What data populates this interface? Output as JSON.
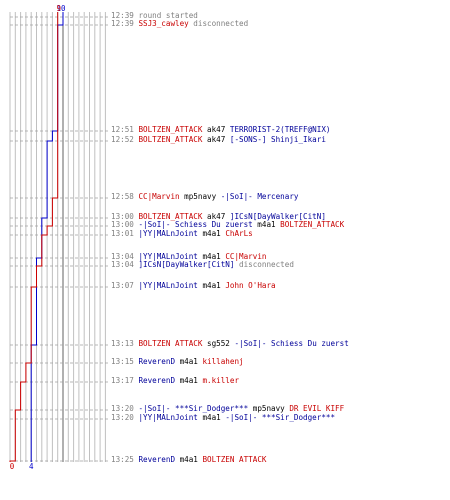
{
  "colors": {
    "blue_team": "#0000cc",
    "red_team": "#cc0000",
    "grid": "#c0c0c0",
    "axis": "#606060",
    "dashed": "#a0a0a0",
    "timestamp": "#808080",
    "blue_name": "#000099",
    "red_name": "#c80000"
  },
  "score": {
    "blue_start": "10",
    "red_start": "9",
    "blue_end": "4",
    "red_end": "0"
  },
  "progress": {
    "blue_counts": [
      10,
      9,
      8,
      7,
      7,
      6,
      6,
      6,
      5,
      5,
      5,
      4,
      4,
      4,
      4,
      4,
      4
    ],
    "red_counts": [
      9,
      9,
      9,
      9,
      8,
      8,
      7,
      6,
      6,
      5,
      4,
      4,
      3,
      2,
      1,
      1,
      0
    ]
  },
  "log": [
    {
      "time": "12:39",
      "parts": [
        {
          "text": "round started",
          "c": "gray"
        }
      ]
    },
    {
      "time": "12:39",
      "parts": [
        {
          "text": "SSJ3_cawley",
          "c": "red"
        },
        {
          "text": " disconnected",
          "c": "gray"
        }
      ]
    },
    {
      "time": "12:51",
      "parts": [
        {
          "text": "BOLTZEN_ATTACK",
          "c": "red"
        },
        {
          "text": " ak47 ",
          "c": "black"
        },
        {
          "text": "TERRORIST-2(TREFF@NIX)",
          "c": "blue"
        }
      ]
    },
    {
      "time": "12:52",
      "parts": [
        {
          "text": "BOLTZEN_ATTACK",
          "c": "red"
        },
        {
          "text": " ak47 ",
          "c": "black"
        },
        {
          "text": "[-SONS-] Shinji_Ikari",
          "c": "blue"
        }
      ]
    },
    {
      "time": "12:58",
      "parts": [
        {
          "text": "CC|Marvin",
          "c": "red"
        },
        {
          "text": " mp5navy ",
          "c": "black"
        },
        {
          "text": "-|SoI|- Mercenary",
          "c": "blue"
        }
      ]
    },
    {
      "time": "13:00",
      "parts": [
        {
          "text": "BOLTZEN_ATTACK",
          "c": "red"
        },
        {
          "text": " ak47 ",
          "c": "black"
        },
        {
          "text": "]ICsN[DayWalker[CitN]",
          "c": "blue"
        }
      ]
    },
    {
      "time": "13:00",
      "parts": [
        {
          "text": "-|SoI|- Schiess Du zuerst",
          "c": "blue"
        },
        {
          "text": " m4a1 ",
          "c": "black"
        },
        {
          "text": "BOLTZEN_ATTACK",
          "c": "red"
        }
      ]
    },
    {
      "time": "13:01",
      "parts": [
        {
          "text": "|YY|MALnJoint",
          "c": "blue"
        },
        {
          "text": " m4a1 ",
          "c": "black"
        },
        {
          "text": "ChArLs",
          "c": "red"
        }
      ]
    },
    {
      "time": "13:04",
      "parts": [
        {
          "text": "|YY|MALnJoint",
          "c": "blue"
        },
        {
          "text": " m4a1 ",
          "c": "black"
        },
        {
          "text": "CC|Marvin",
          "c": "red"
        }
      ]
    },
    {
      "time": "13:04",
      "parts": [
        {
          "text": "]ICsN[DayWalker[CitN]",
          "c": "blue"
        },
        {
          "text": " disconnected",
          "c": "gray"
        }
      ]
    },
    {
      "time": "13:07",
      "parts": [
        {
          "text": "|YY|MALnJoint",
          "c": "blue"
        },
        {
          "text": " m4a1 ",
          "c": "black"
        },
        {
          "text": "John O'Hara",
          "c": "red"
        }
      ]
    },
    {
      "time": "13:13",
      "parts": [
        {
          "text": "BOLTZEN ATTACK",
          "c": "red"
        },
        {
          "text": " sg552 ",
          "c": "black"
        },
        {
          "text": "-|SoI|- Schiess Du zuerst",
          "c": "blue"
        }
      ]
    },
    {
      "time": "13:15",
      "parts": [
        {
          "text": "ReverenD",
          "c": "blue"
        },
        {
          "text": " m4a1 ",
          "c": "black"
        },
        {
          "text": "killahenj",
          "c": "red"
        }
      ]
    },
    {
      "time": "13:17",
      "parts": [
        {
          "text": "ReverenD",
          "c": "blue"
        },
        {
          "text": " m4a1 ",
          "c": "black"
        },
        {
          "text": "m.killer",
          "c": "red"
        }
      ]
    },
    {
      "time": "13:20",
      "parts": [
        {
          "text": "-|SoI|- ***Sir_Dodger***",
          "c": "blue"
        },
        {
          "text": " mp5navy ",
          "c": "black"
        },
        {
          "text": "DR EVIL KIFF",
          "c": "red"
        }
      ]
    },
    {
      "time": "13:20",
      "parts": [
        {
          "text": "|YY|MALnJoint",
          "c": "blue"
        },
        {
          "text": " m4a1 ",
          "c": "black"
        },
        {
          "text": "-|SoI|- ***Sir_Dodger***",
          "c": "blue"
        }
      ]
    },
    {
      "time": "13:25",
      "parts": [
        {
          "text": "ReverenD",
          "c": "blue"
        },
        {
          "text": " m4a1 ",
          "c": "black"
        },
        {
          "text": "BOLTZEN ATTACK",
          "c": "red"
        }
      ]
    }
  ]
}
